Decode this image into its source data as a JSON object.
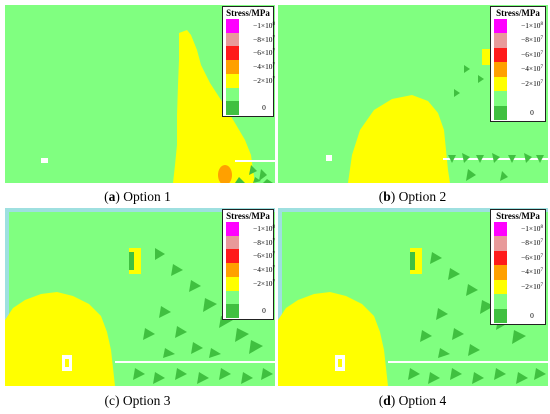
{
  "legend": {
    "title": "Stress/MPa",
    "items": [
      {
        "mant": "−1×10",
        "exp": "8",
        "color": "#ff00ff"
      },
      {
        "mant": "−8×10",
        "exp": "7",
        "color": "#e89a9a"
      },
      {
        "mant": "−6×10",
        "exp": "7",
        "color": "#ff1a1a"
      },
      {
        "mant": "−4×10",
        "exp": "7",
        "color": "#ffa000"
      },
      {
        "mant": "−2×10",
        "exp": "7",
        "color": "#ffff00"
      },
      {
        "mant": "",
        "exp": "",
        "color": "#80ff80"
      },
      {
        "mant": "0",
        "exp": "",
        "color": "#40c040"
      }
    ]
  },
  "panels": [
    {
      "letter": "a",
      "caption": " Option 1"
    },
    {
      "letter": "b",
      "caption": " Option 2"
    },
    {
      "letter": "c",
      "caption": " Option 3"
    },
    {
      "letter": "d",
      "caption": " Option 4"
    }
  ],
  "colors": {
    "background_stress": "#80ff80",
    "high_stress": "#ffff00",
    "concentration": "#ffa000",
    "low": "#40c040",
    "border_low": "#9ee0e0"
  }
}
